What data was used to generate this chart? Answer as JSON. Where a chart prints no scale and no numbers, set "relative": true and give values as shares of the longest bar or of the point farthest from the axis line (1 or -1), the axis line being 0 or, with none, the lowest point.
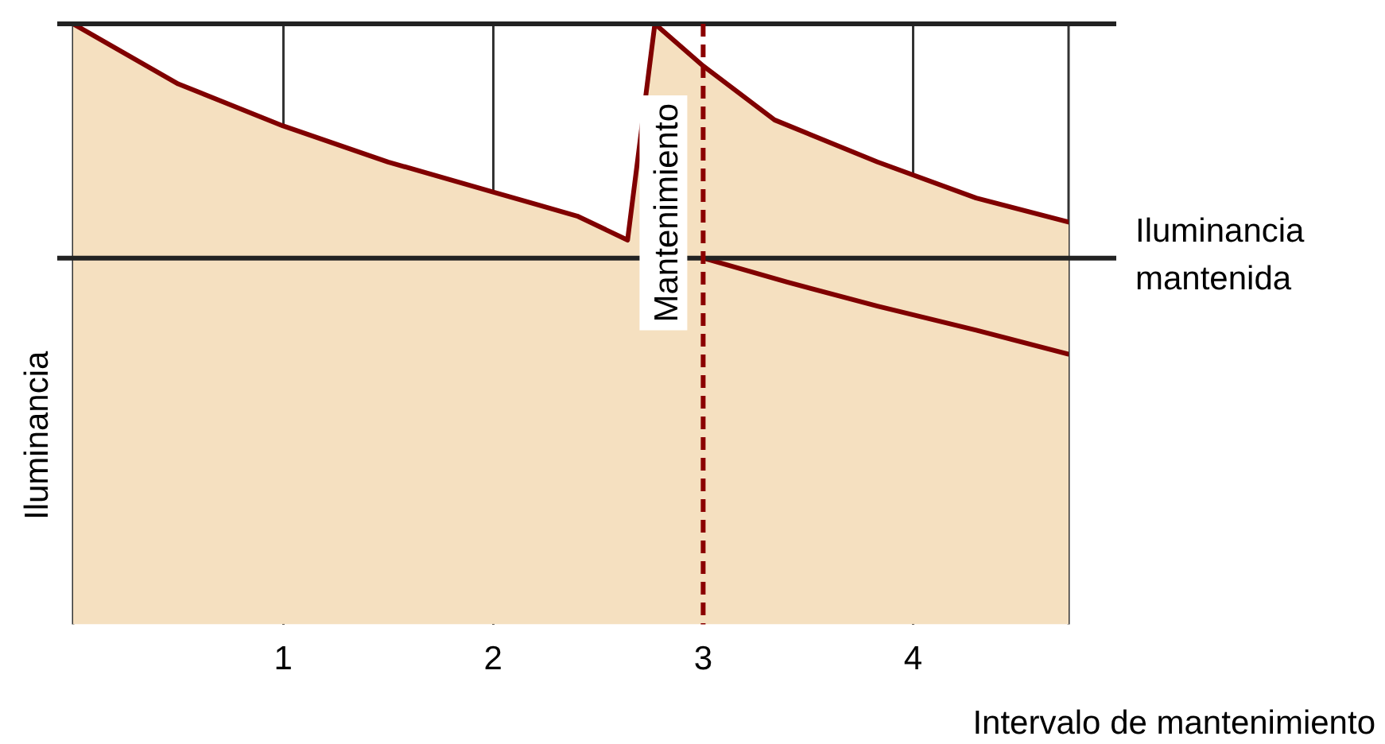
{
  "chart_data": {
    "type": "area",
    "relative": true,
    "xlabel": "Intervalo de mantenimiento",
    "ylabel": "Iluminancia",
    "xlim": [
      0,
      4.74
    ],
    "xticks": [
      1,
      2,
      3,
      4
    ],
    "grid": "x",
    "legend": false,
    "marker": "none",
    "series": [
      {
        "color": "#800000",
        "x": [
          0,
          0.5,
          1,
          1.5,
          2,
          2.4,
          2.64,
          2.77,
          3,
          3.34,
          3.83,
          4.3,
          4.74
        ],
        "values": [
          1,
          0.9,
          0.83,
          0.77,
          0.72,
          0.68,
          0.64,
          1,
          0.93,
          0.84,
          0.77,
          0.71,
          0.67
        ]
      },
      {
        "type": "line",
        "color": "#800000",
        "x": [
          3,
          3.4,
          3.83,
          4.3,
          4.74
        ],
        "values": [
          0.61,
          0.57,
          0.53,
          0.49,
          0.45
        ]
      }
    ],
    "ref_lines": [
      {
        "axis": "y",
        "value": 1,
        "label": null,
        "color": "#222222"
      },
      {
        "axis": "y",
        "value": 0.61,
        "label": "Iluminancia mantenida",
        "color": "#222222"
      },
      {
        "axis": "x",
        "value": 3,
        "label": "Mantenimiento",
        "color": "#8b0000",
        "line_style": "dashed"
      }
    ]
  }
}
